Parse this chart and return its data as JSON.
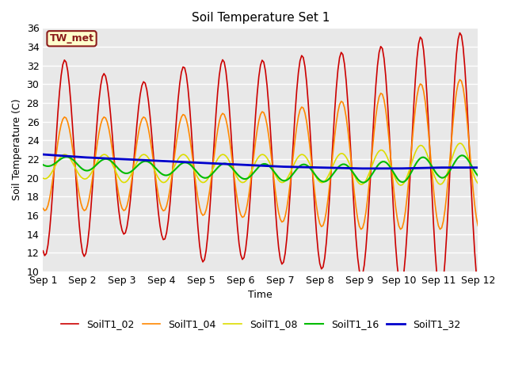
{
  "title": "Soil Temperature Set 1",
  "xlabel": "Time",
  "ylabel": "Soil Temperature (C)",
  "xlim": [
    0,
    11
  ],
  "ylim": [
    10,
    36
  ],
  "yticks": [
    10,
    12,
    14,
    16,
    18,
    20,
    22,
    24,
    26,
    28,
    30,
    32,
    34,
    36
  ],
  "xtick_labels": [
    "Sep 1",
    "Sep 2",
    "Sep 3",
    "Sep 4",
    "Sep 5",
    "Sep 6",
    "Sep 7",
    "Sep 8",
    "Sep 9",
    "Sep 10",
    "Sep 11",
    "Sep 12"
  ],
  "bg_color": "#e8e8e8",
  "annotation_text": "TW_met",
  "annotation_bg": "#ffffcc",
  "annotation_border": "#8b1a1a",
  "series": {
    "SoilT1_02": {
      "color": "#cc0000",
      "linewidth": 1.2
    },
    "SoilT1_04": {
      "color": "#ff8800",
      "linewidth": 1.2
    },
    "SoilT1_08": {
      "color": "#dddd00",
      "linewidth": 1.2
    },
    "SoilT1_16": {
      "color": "#00bb00",
      "linewidth": 1.5
    },
    "SoilT1_32": {
      "color": "#0000cc",
      "linewidth": 2.0
    }
  },
  "legend_order": [
    "SoilT1_02",
    "SoilT1_04",
    "SoilT1_08",
    "SoilT1_16",
    "SoilT1_32"
  ]
}
